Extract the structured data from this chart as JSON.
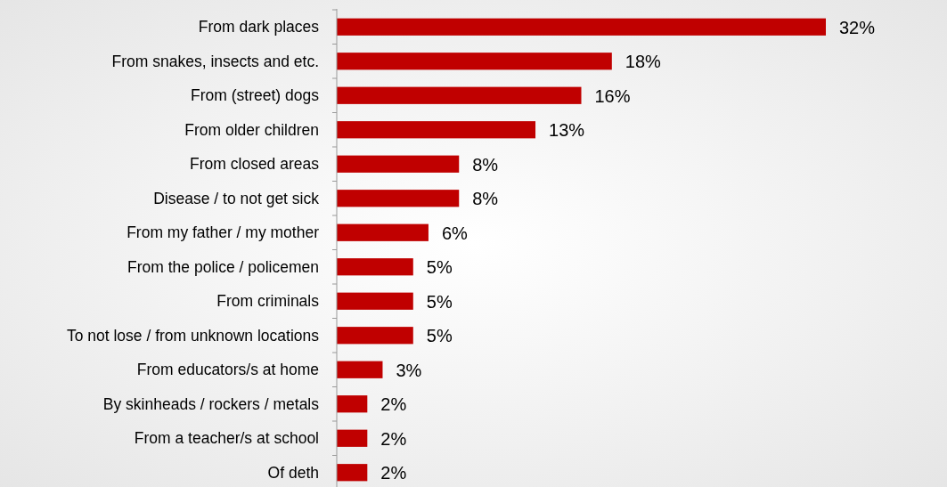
{
  "chart_data": {
    "type": "bar",
    "orientation": "horizontal",
    "categories": [
      "From dark places",
      "From snakes, insects and etc.",
      "From (street) dogs",
      "From older children",
      "From closed areas",
      "Disease / to not get sick",
      "From my father / my mother",
      "From the police / policemen",
      "From criminals",
      "To not lose / from unknown locations",
      "From educators/s at home",
      "By skinheads / rockers / metals",
      "From a teacher/s at school",
      "Of deth"
    ],
    "values": [
      32,
      18,
      16,
      13,
      8,
      8,
      6,
      5,
      5,
      5,
      3,
      2,
      2,
      2
    ],
    "value_labels": [
      "32%",
      "18%",
      "16%",
      "13%",
      "8%",
      "8%",
      "6%",
      "5%",
      "5%",
      "5%",
      "3%",
      "2%",
      "2%",
      "2%"
    ],
    "color": "#c00000"
  }
}
